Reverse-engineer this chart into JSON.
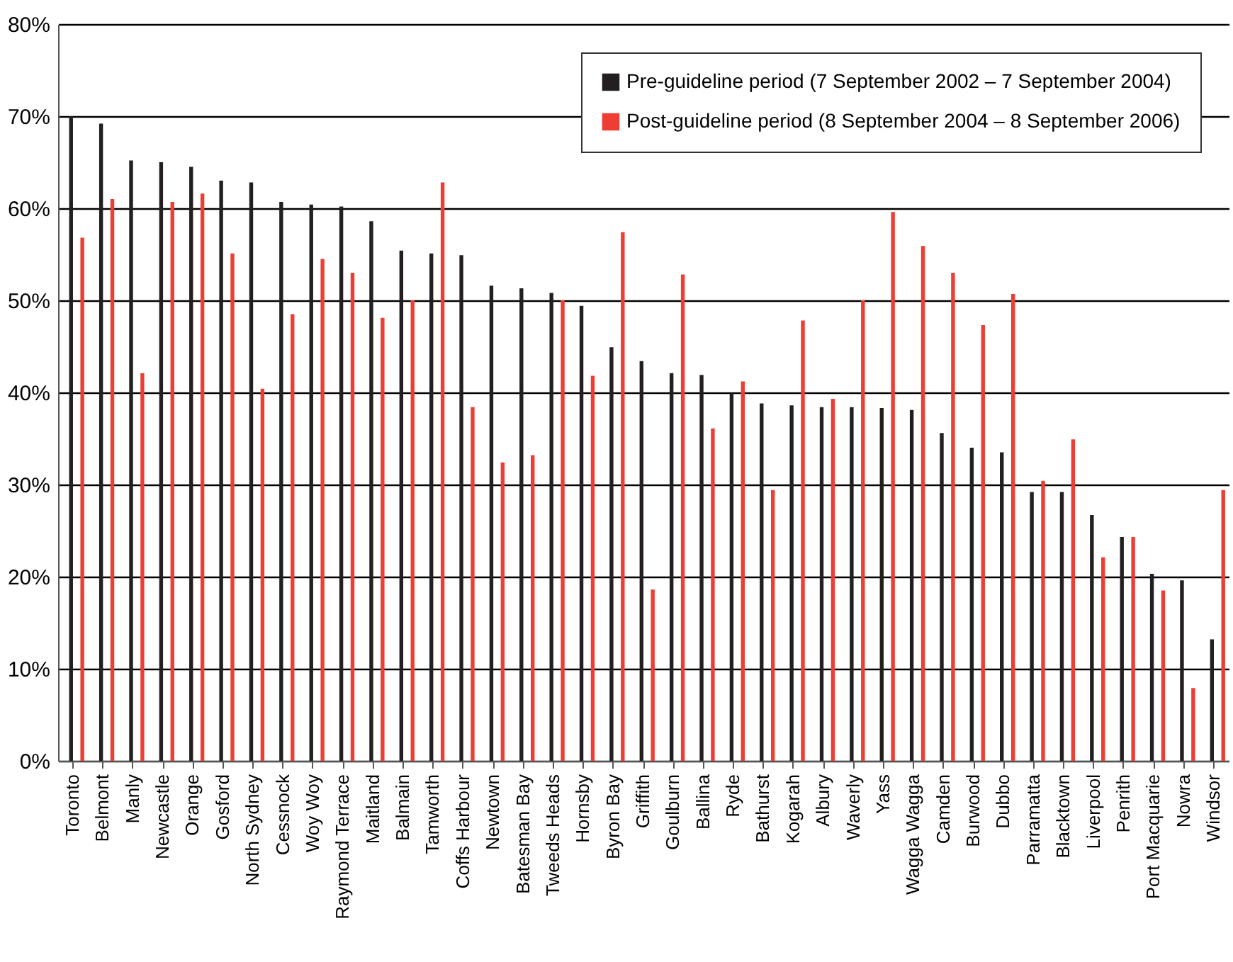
{
  "chart_data": {
    "type": "bar",
    "categories": [
      "Toronto",
      "Belmont",
      "Manly",
      "Newcastle",
      "Orange",
      "Gosford",
      "North Sydney",
      "Cessnock",
      "Woy Woy",
      "Raymond Terrace",
      "Maitland",
      "Balmain",
      "Tamworth",
      "Coffs Harbour",
      "Newtown",
      "Batesman Bay",
      "Tweeds Heads",
      "Hornsby",
      "Byron Bay",
      "Griffith",
      "Goulburn",
      "Ballina",
      "Ryde",
      "Bathurst",
      "Kogarah",
      "Albury",
      "Waverly",
      "Yass",
      "Wagga Wagga",
      "Camden",
      "Burwood",
      "Dubbo",
      "Parramatta",
      "Blacktown",
      "Liverpool",
      "Penrith",
      "Port Macquarie",
      "Nowra",
      "Windsor"
    ],
    "series": [
      {
        "name": "Pre-guideline period (7 September 2002 – 7 September 2004)",
        "color": "#231f20",
        "values": [
          70.0,
          69.2,
          65.2,
          65.0,
          64.5,
          63.0,
          62.8,
          60.7,
          60.4,
          60.2,
          58.6,
          55.4,
          55.1,
          54.9,
          51.6,
          51.3,
          50.8,
          49.4,
          44.9,
          43.4,
          42.1,
          41.9,
          39.9,
          38.8,
          38.6,
          38.4,
          38.4,
          38.3,
          38.1,
          35.6,
          34.0,
          33.5,
          29.2,
          29.2,
          26.7,
          24.3,
          20.3,
          19.6,
          13.2
        ]
      },
      {
        "name": "Post-guideline period (8 September 2004 – 8 September 2006)",
        "color": "#ee3e33",
        "values": [
          56.8,
          61.0,
          42.1,
          60.7,
          61.6,
          55.1,
          40.4,
          48.5,
          54.5,
          53.0,
          48.1,
          50.0,
          62.8,
          38.4,
          32.4,
          33.2,
          50.0,
          41.8,
          57.4,
          18.6,
          52.8,
          36.1,
          41.2,
          29.4,
          47.8,
          39.3,
          50.0,
          59.6,
          55.9,
          53.0,
          47.3,
          50.7,
          30.4,
          34.9,
          22.1,
          24.3,
          18.5,
          7.9,
          29.4
        ]
      }
    ],
    "ylim": [
      0,
      80
    ],
    "yticks": [
      {
        "value": 0,
        "label": "0%"
      },
      {
        "value": 10,
        "label": "10%"
      },
      {
        "value": 20,
        "label": "20%"
      },
      {
        "value": 30,
        "label": "30%"
      },
      {
        "value": 40,
        "label": "40%"
      },
      {
        "value": 50,
        "label": "50%"
      },
      {
        "value": 60,
        "label": "60%"
      },
      {
        "value": 70,
        "label": "70%"
      },
      {
        "value": 80,
        "label": "80%"
      }
    ],
    "grid": "y",
    "legend": "top right"
  }
}
